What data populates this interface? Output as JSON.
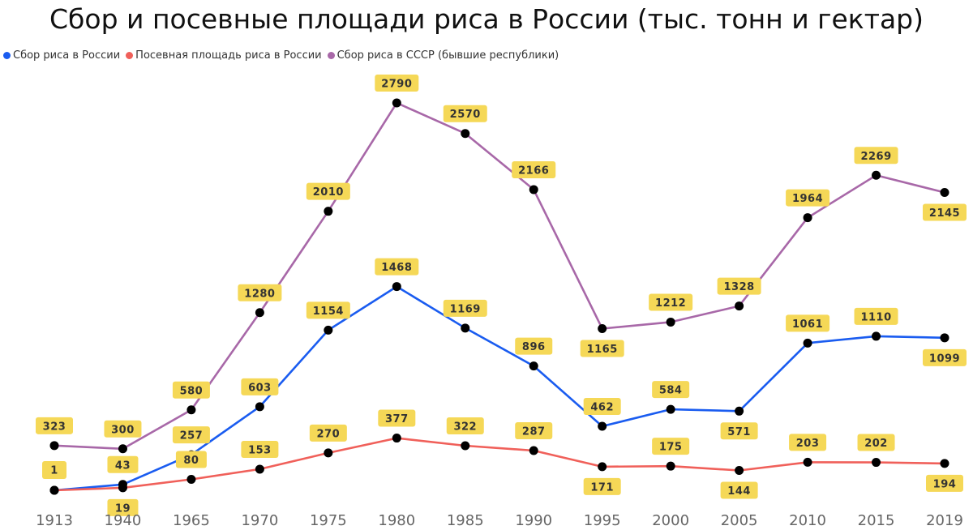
{
  "title": "Сбор и посевные площади риса в России (тыс. тонн и гектар)",
  "legend": [
    {
      "label": "Сбор риса в России",
      "color": "#1a5cf0"
    },
    {
      "label": "Посевная площадь риса в России",
      "color": "#f0605a"
    },
    {
      "label": "Сбор риса в СССР (бывшие республики)",
      "color": "#a868a8"
    }
  ],
  "colors": {
    "label_bg": "#f5d857",
    "marker": "#000000"
  },
  "chart_data": {
    "type": "line",
    "title": "Сбор и посевные площади риса в России (тыс. тонн и гектар)",
    "categories": [
      "1913",
      "1940",
      "1965",
      "1970",
      "1975",
      "1980",
      "1985",
      "1990",
      "1995",
      "2000",
      "2005",
      "2010",
      "2015",
      "2019"
    ],
    "series": [
      {
        "name": "Сбор риса в России",
        "color": "#1a5cf0",
        "values": [
          1,
          43,
          257,
          603,
          1154,
          1468,
          1169,
          896,
          462,
          584,
          571,
          1061,
          1110,
          1099
        ]
      },
      {
        "name": "Посевная площадь риса в России",
        "color": "#f0605a",
        "values": [
          1,
          19,
          80,
          153,
          270,
          377,
          322,
          287,
          171,
          175,
          144,
          203,
          202,
          194
        ]
      },
      {
        "name": "Сбор риса в СССР (бывшие республики)",
        "color": "#a868a8",
        "values": [
          323,
          300,
          580,
          1280,
          2010,
          2790,
          2570,
          2166,
          1165,
          1212,
          1328,
          1964,
          2269,
          2145
        ]
      }
    ],
    "label_positions": [
      [
        "above",
        "above",
        "above",
        "above",
        "above",
        "above",
        "above",
        "above",
        "above",
        "above",
        "below",
        "above",
        "above",
        "below"
      ],
      [
        "none",
        "below",
        "above",
        "above",
        "above",
        "above",
        "above",
        "above",
        "below",
        "above",
        "below",
        "above",
        "above",
        "below"
      ],
      [
        "above",
        "above",
        "above",
        "above",
        "above",
        "above",
        "above",
        "above",
        "below",
        "above",
        "above",
        "above",
        "above",
        "below"
      ]
    ],
    "xlabel": "",
    "ylabel": "",
    "ylim": [
      0,
      2900
    ],
    "grid": false,
    "legend_position": "top-left"
  }
}
